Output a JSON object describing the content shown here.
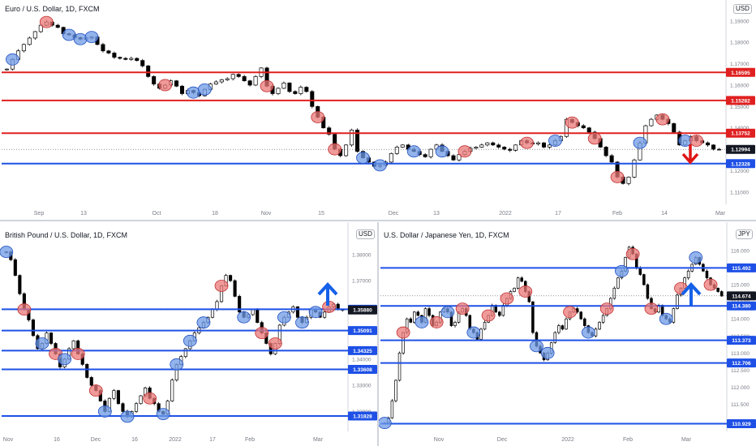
{
  "colors": {
    "support": "#1e50e6",
    "resistance": "#e02020",
    "up_candle": "#ffffff",
    "down_candle": "#000000",
    "blue_marker": "#6e9ae6",
    "red_marker": "#eb7878",
    "arrow_up": "#1560e8",
    "arrow_down": "#e01515"
  },
  "chart_data": [
    {
      "type": "candlestick",
      "title": "Euro / U.S. Dollar, 1D, FXCM",
      "currency_badge": "USD",
      "price_axis_ticks": [
        "1.19000",
        "1.18000",
        "1.17000",
        "1.16000",
        "1.15000",
        "1.14000",
        "1.13000",
        "1.12000",
        "1.11000"
      ],
      "time_axis_ticks": [
        "Sep",
        "13",
        "Oct",
        "18",
        "Nov",
        "15",
        "Dec",
        "13",
        "2022",
        "17",
        "Feb",
        "14",
        "Mar"
      ],
      "ylim": [
        1.105,
        1.196
      ],
      "current_price": "1.12994",
      "current_value": 1.12994,
      "levels": [
        {
          "label": "1.16595",
          "value": 1.16595,
          "kind": "resistance"
        },
        {
          "label": "1.15282",
          "value": 1.15282,
          "kind": "resistance"
        },
        {
          "label": "1.13752",
          "value": 1.13752,
          "kind": "resistance"
        },
        {
          "label": "1.12328",
          "value": 1.12328,
          "kind": "support"
        }
      ],
      "closes": [
        1.1675,
        1.172,
        1.176,
        1.179,
        1.182,
        1.185,
        1.188,
        1.1895,
        1.188,
        1.187,
        1.184,
        1.1835,
        1.1822,
        1.1815,
        1.182,
        1.1825,
        1.179,
        1.176,
        1.175,
        1.173,
        1.1725,
        1.172,
        1.1725,
        1.1715,
        1.169,
        1.164,
        1.1605,
        1.1585,
        1.16,
        1.162,
        1.1595,
        1.156,
        1.1575,
        1.1565,
        1.155,
        1.158,
        1.1605,
        1.1615,
        1.1625,
        1.163,
        1.165,
        1.164,
        1.162,
        1.16,
        1.164,
        1.168,
        1.1595,
        1.156,
        1.1585,
        1.161,
        1.157,
        1.156,
        1.159,
        1.157,
        1.15,
        1.145,
        1.14,
        1.137,
        1.13,
        1.127,
        1.132,
        1.139,
        1.129,
        1.126,
        1.124,
        1.122,
        1.1225,
        1.124,
        1.128,
        1.131,
        1.132,
        1.13,
        1.129,
        1.1275,
        1.1265,
        1.13,
        1.132,
        1.129,
        1.127,
        1.125,
        1.1275,
        1.129,
        1.1305,
        1.131,
        1.132,
        1.133,
        1.132,
        1.131,
        1.13,
        1.1295,
        1.132,
        1.134,
        1.133,
        1.1325,
        1.133,
        1.131,
        1.132,
        1.134,
        1.136,
        1.144,
        1.1425,
        1.141,
        1.14,
        1.138,
        1.135,
        1.131,
        1.127,
        1.124,
        1.117,
        1.114,
        1.117,
        1.125,
        1.133,
        1.141,
        1.144,
        1.146,
        1.144,
        1.142,
        1.138,
        1.132,
        1.134,
        1.136,
        1.134,
        1.133,
        1.132,
        1.13,
        1.1299
      ]
    },
    {
      "type": "candlestick",
      "title": "British Pound / U.S. Dollar, 1D, FXCM",
      "currency_badge": "USD",
      "price_axis_ticks": [
        "1.38000",
        "1.37000",
        "1.36000",
        "1.35000",
        "1.34000",
        "1.33000",
        "1.32000"
      ],
      "time_axis_ticks": [
        "Nov",
        "16",
        "Dec",
        "16",
        "2022",
        "17",
        "Feb",
        "Mar"
      ],
      "ylim": [
        1.313,
        1.388
      ],
      "current_price": "1.35880",
      "current_value": 1.3588,
      "levels": [
        {
          "label": "1.35905",
          "value": 1.35905,
          "kind": "support"
        },
        {
          "label": "1.35091",
          "value": 1.35091,
          "kind": "support"
        },
        {
          "label": "1.34325",
          "value": 1.34325,
          "kind": "support"
        },
        {
          "label": "1.33608",
          "value": 1.33608,
          "kind": "support"
        },
        {
          "label": "1.31828",
          "value": 1.31828,
          "kind": "support"
        }
      ],
      "closes": [
        1.381,
        1.378,
        1.372,
        1.365,
        1.359,
        1.355,
        1.349,
        1.344,
        1.346,
        1.35,
        1.346,
        1.342,
        1.337,
        1.34,
        1.344,
        1.347,
        1.342,
        1.338,
        1.333,
        1.33,
        1.328,
        1.324,
        1.32,
        1.325,
        1.328,
        1.323,
        1.32,
        1.318,
        1.32,
        1.323,
        1.326,
        1.329,
        1.325,
        1.323,
        1.32,
        1.319,
        1.324,
        1.332,
        1.338,
        1.341,
        1.344,
        1.347,
        1.35,
        1.352,
        1.354,
        1.356,
        1.359,
        1.362,
        1.368,
        1.372,
        1.37,
        1.364,
        1.358,
        1.356,
        1.357,
        1.359,
        1.354,
        1.35,
        1.346,
        1.342,
        1.346,
        1.353,
        1.356,
        1.358,
        1.36,
        1.356,
        1.354,
        1.356,
        1.359,
        1.358,
        1.356,
        1.358,
        1.36,
        1.361,
        1.359,
        1.3588
      ]
    },
    {
      "type": "candlestick",
      "title": "U.S. Dollar / Japanese Yen, 1D, FXCM",
      "currency_badge": "JPY",
      "price_axis_ticks": [
        "116.000",
        "115.500",
        "115.000",
        "114.500",
        "114.000",
        "113.500",
        "113.000",
        "112.500",
        "112.000",
        "111.500",
        "111.000"
      ],
      "time_axis_ticks": [
        "Nov",
        "Dec",
        "2022",
        "Feb",
        "Mar"
      ],
      "ylim": [
        110.75,
        116.5
      ],
      "current_price": "114.674",
      "current_value": 114.674,
      "levels": [
        {
          "label": "115.492",
          "value": 115.492,
          "kind": "support"
        },
        {
          "label": "114.380",
          "value": 114.38,
          "kind": "support"
        },
        {
          "label": "113.373",
          "value": 113.373,
          "kind": "support"
        },
        {
          "label": "112.706",
          "value": 112.706,
          "kind": "support"
        },
        {
          "label": "110.929",
          "value": 110.929,
          "kind": "support"
        }
      ],
      "closes": [
        110.95,
        111.1,
        111.6,
        112.2,
        113.0,
        113.6,
        114.0,
        113.9,
        114.2,
        114.1,
        113.9,
        114.3,
        114.1,
        113.8,
        113.9,
        114.2,
        114.3,
        114.2,
        113.8,
        113.9,
        114.2,
        114.3,
        114.1,
        113.7,
        113.6,
        113.4,
        113.7,
        113.9,
        114.1,
        114.4,
        114.2,
        114.1,
        114.4,
        114.6,
        114.8,
        114.9,
        115.2,
        115.1,
        114.8,
        114.5,
        113.6,
        113.2,
        113.0,
        112.8,
        113.0,
        113.3,
        113.6,
        113.8,
        113.7,
        114.0,
        114.2,
        114.3,
        114.2,
        114.0,
        113.8,
        113.6,
        113.5,
        113.7,
        113.9,
        114.1,
        114.3,
        114.6,
        114.9,
        115.2,
        115.4,
        115.8,
        116.1,
        115.9,
        115.5,
        115.3,
        115.0,
        114.6,
        114.3,
        114.2,
        114.4,
        114.1,
        114.0,
        113.9,
        114.3,
        114.7,
        114.9,
        115.2,
        115.4,
        115.6,
        115.8,
        115.6,
        115.4,
        115.2,
        115.0,
        114.9,
        114.8,
        114.67
      ]
    }
  ]
}
